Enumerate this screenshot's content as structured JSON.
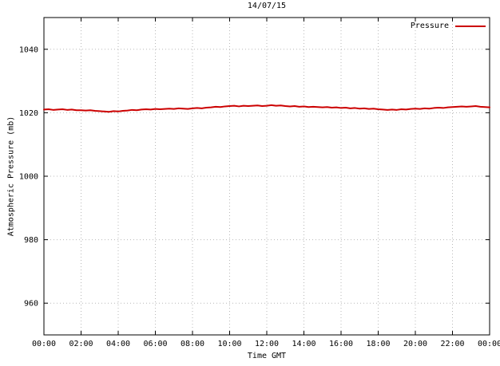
{
  "chart_data": {
    "type": "line",
    "title": "14/07/15",
    "xlabel": "Time GMT",
    "ylabel": "Atmospheric Pressure (mb)",
    "x_range": [
      0,
      24
    ],
    "y_range": [
      950,
      1050
    ],
    "x_tick_values": [
      0,
      2,
      4,
      6,
      8,
      10,
      12,
      14,
      16,
      18,
      20,
      22,
      24
    ],
    "x_tick_labels": [
      "00:00",
      "02:00",
      "04:00",
      "06:00",
      "08:00",
      "10:00",
      "12:00",
      "14:00",
      "16:00",
      "18:00",
      "20:00",
      "22:00",
      "00:00"
    ],
    "y_ticks": [
      960,
      980,
      1000,
      1020,
      1040
    ],
    "grid": "dotted",
    "legend_position": "top-right",
    "series": [
      {
        "name": "Pressure",
        "color": "#cc0000",
        "x_start": 0,
        "x_step": 0.25,
        "values": [
          1021.0,
          1021.1,
          1020.9,
          1021.0,
          1021.1,
          1020.9,
          1021.0,
          1020.8,
          1020.8,
          1020.7,
          1020.8,
          1020.6,
          1020.5,
          1020.4,
          1020.3,
          1020.5,
          1020.4,
          1020.6,
          1020.7,
          1020.9,
          1020.8,
          1021.0,
          1021.1,
          1021.0,
          1021.2,
          1021.1,
          1021.2,
          1021.3,
          1021.2,
          1021.4,
          1021.3,
          1021.2,
          1021.4,
          1021.5,
          1021.4,
          1021.6,
          1021.7,
          1021.9,
          1021.8,
          1022.0,
          1022.1,
          1022.2,
          1022.0,
          1022.2,
          1022.1,
          1022.2,
          1022.3,
          1022.1,
          1022.2,
          1022.4,
          1022.2,
          1022.3,
          1022.1,
          1022.0,
          1022.1,
          1021.9,
          1022.0,
          1021.8,
          1021.9,
          1021.8,
          1021.7,
          1021.8,
          1021.6,
          1021.7,
          1021.5,
          1021.6,
          1021.4,
          1021.5,
          1021.3,
          1021.4,
          1021.2,
          1021.3,
          1021.1,
          1021.0,
          1020.9,
          1021.0,
          1020.9,
          1021.1,
          1021.0,
          1021.2,
          1021.3,
          1021.2,
          1021.4,
          1021.3,
          1021.5,
          1021.6,
          1021.5,
          1021.7,
          1021.8,
          1021.9,
          1022.0,
          1021.9,
          1022.0,
          1022.1,
          1021.9,
          1021.8,
          1021.7
        ]
      }
    ]
  },
  "colors": {
    "line": "#cc0000",
    "grid": "#b8b8b8",
    "border": "#000000",
    "background": "#ffffff"
  }
}
